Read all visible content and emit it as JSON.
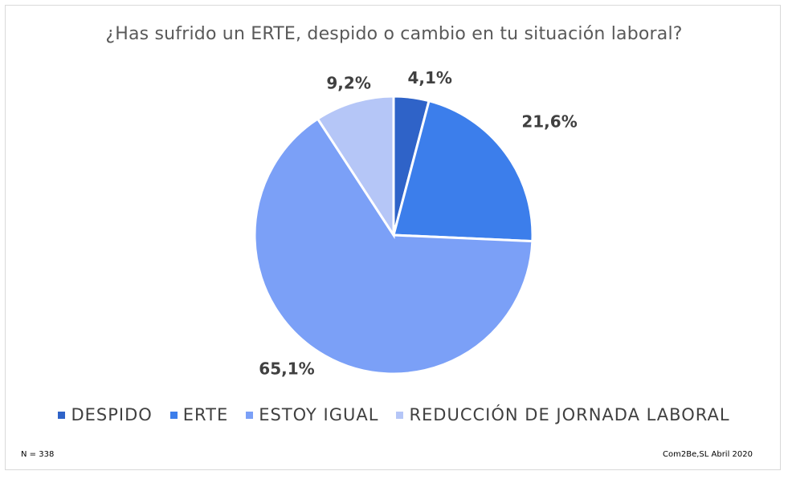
{
  "chart_data": {
    "type": "pie",
    "title": "¿Has sufrido un ERTE, despido o cambio en tu situación laboral?",
    "categories": [
      "DESPIDO",
      "ERTE",
      "ESTOY IGUAL",
      "REDUCCIÓN DE JORNADA LABORAL"
    ],
    "values": [
      4.1,
      21.6,
      65.1,
      9.2
    ],
    "data_labels": [
      "4,1%",
      "21,6%",
      "65,1%",
      "9,2%"
    ],
    "colors": [
      "#2f63c8",
      "#3c7eeb",
      "#7ba0f7",
      "#b5c6f7"
    ],
    "legend_position": "bottom"
  },
  "footer": {
    "sample_size": "N = 338",
    "source": "Com2Be,SL Abril 2020"
  }
}
